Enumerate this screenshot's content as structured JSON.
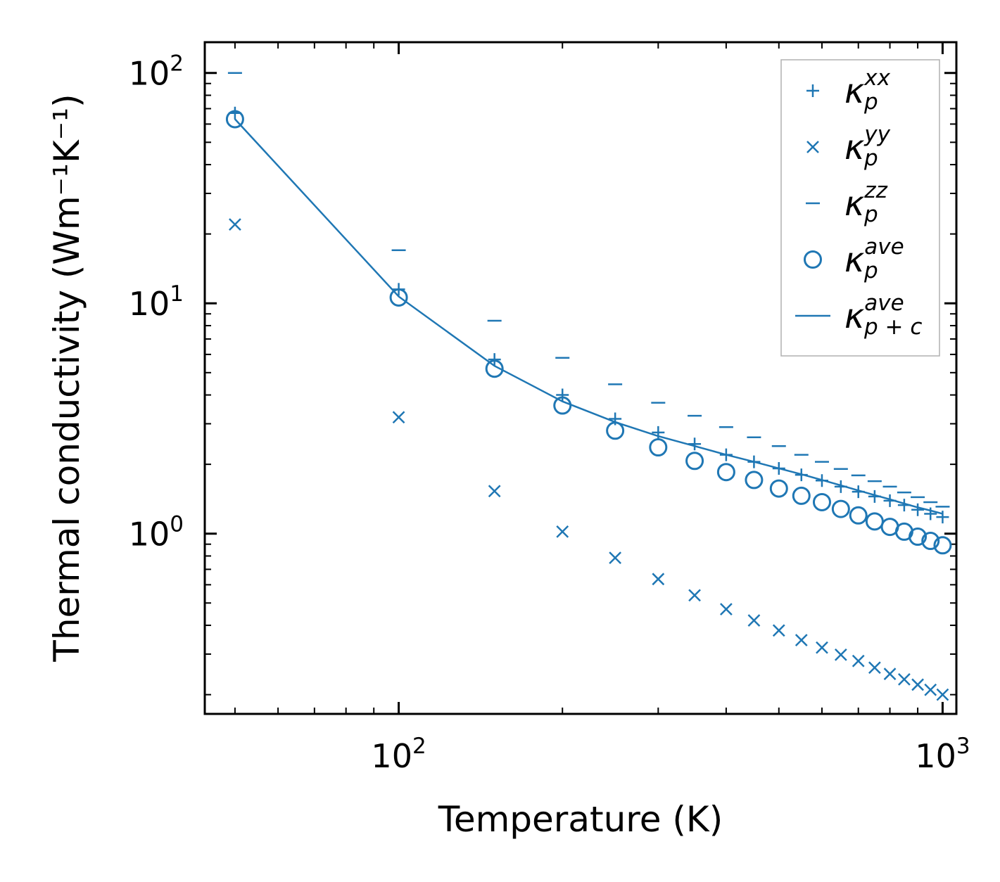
{
  "chart_data": {
    "type": "scatter",
    "title": "",
    "xlabel": "Temperature (K)",
    "ylabel": "Thermal conductivity (Wm⁻¹K⁻¹)",
    "xscale": "log",
    "yscale": "log",
    "xlim": [
      44,
      1060
    ],
    "ylim": [
      0.165,
      136
    ],
    "color": "#1f77b4",
    "x_ticks": [
      {
        "value": 100,
        "base": "10",
        "exp": "2"
      },
      {
        "value": 1000,
        "base": "10",
        "exp": "3"
      }
    ],
    "y_ticks": [
      {
        "value": 1,
        "base": "10",
        "exp": "0"
      },
      {
        "value": 10,
        "base": "10",
        "exp": "1"
      },
      {
        "value": 100,
        "base": "10",
        "exp": "2"
      }
    ],
    "legend_position": "top-right",
    "series": [
      {
        "name": "kappa_p_xx",
        "marker": "plus",
        "label_base": "κ",
        "label_sub": "p",
        "label_sup": "xx",
        "x": [
          50,
          100,
          150,
          200,
          250,
          300,
          350,
          400,
          450,
          500,
          550,
          600,
          650,
          700,
          750,
          800,
          850,
          900,
          950,
          1000
        ],
        "y": [
          67.0,
          11.5,
          5.7,
          4.0,
          3.15,
          2.75,
          2.45,
          2.2,
          2.05,
          1.92,
          1.8,
          1.7,
          1.6,
          1.52,
          1.45,
          1.39,
          1.33,
          1.27,
          1.22,
          1.18
        ]
      },
      {
        "name": "kappa_p_yy",
        "marker": "x",
        "label_base": "κ",
        "label_sub": "p",
        "label_sup": "yy",
        "x": [
          50,
          100,
          150,
          200,
          250,
          300,
          350,
          400,
          450,
          500,
          550,
          600,
          650,
          700,
          750,
          800,
          850,
          900,
          950,
          1000
        ],
        "y": [
          22.0,
          3.2,
          1.53,
          1.02,
          0.785,
          0.635,
          0.54,
          0.47,
          0.42,
          0.38,
          0.345,
          0.32,
          0.298,
          0.28,
          0.262,
          0.246,
          0.233,
          0.221,
          0.21,
          0.2
        ]
      },
      {
        "name": "kappa_p_zz",
        "marker": "hline",
        "label_base": "κ",
        "label_sub": "p",
        "label_sup": "zz",
        "x": [
          50,
          100,
          150,
          200,
          250,
          300,
          350,
          400,
          450,
          500,
          550,
          600,
          650,
          700,
          750,
          800,
          850,
          900,
          950,
          1000
        ],
        "y": [
          100,
          17,
          8.4,
          5.8,
          4.45,
          3.7,
          3.25,
          2.9,
          2.62,
          2.4,
          2.2,
          2.05,
          1.91,
          1.79,
          1.69,
          1.6,
          1.51,
          1.44,
          1.37,
          1.31
        ]
      },
      {
        "name": "kappa_p_ave",
        "marker": "circle",
        "label_base": "κ",
        "label_sub": "p",
        "label_sup": "ave",
        "x": [
          50,
          100,
          150,
          200,
          250,
          300,
          350,
          400,
          450,
          500,
          550,
          600,
          650,
          700,
          750,
          800,
          850,
          900,
          950,
          1000
        ],
        "y": [
          63.0,
          10.6,
          5.2,
          3.6,
          2.8,
          2.37,
          2.07,
          1.85,
          1.71,
          1.57,
          1.46,
          1.37,
          1.28,
          1.2,
          1.13,
          1.07,
          1.02,
          0.97,
          0.93,
          0.89
        ]
      },
      {
        "name": "kappa_pc_ave",
        "marker": "line",
        "label_base": "κ",
        "label_sub": "p + c",
        "label_sup": "ave",
        "x": [
          50,
          100,
          150,
          200,
          250,
          300,
          350,
          400,
          450,
          500,
          550,
          600,
          650,
          700,
          750,
          800,
          850,
          900,
          950,
          1000
        ],
        "y": [
          63.0,
          10.7,
          5.35,
          3.75,
          3.05,
          2.65,
          2.4,
          2.2,
          2.05,
          1.92,
          1.81,
          1.71,
          1.62,
          1.54,
          1.47,
          1.41,
          1.35,
          1.3,
          1.26,
          1.22
        ]
      }
    ]
  }
}
